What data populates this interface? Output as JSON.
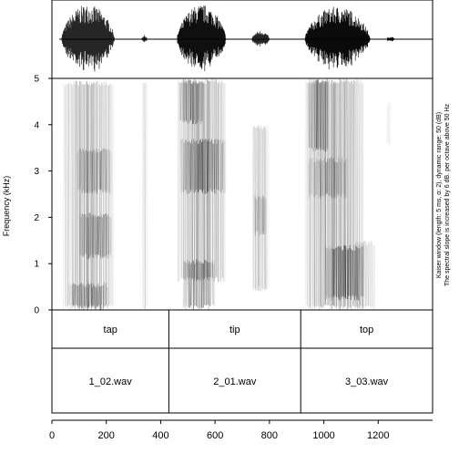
{
  "chart_data": {
    "type": "spectrogram",
    "x_axis": {
      "unit": "ms",
      "range": [
        0,
        1400
      ],
      "ticks": [
        0,
        200,
        400,
        600,
        800,
        1000,
        1200
      ],
      "tick_labels": [
        "0",
        "200",
        "400",
        "600",
        "800",
        "1000",
        "1200"
      ]
    },
    "y_axis": {
      "label": "Frequency (kHz)",
      "range": [
        0,
        5
      ],
      "ticks": [
        0,
        1,
        2,
        3,
        4,
        5
      ],
      "tick_labels": [
        "0",
        "1",
        "2",
        "3",
        "4",
        "5"
      ]
    },
    "side_notes": [
      "Kaiser window (length: 5 ms, α: 2), dynamic range: 50 (dB)",
      "The spectral slope is increased by 6 dB. per octave above 50 Hz"
    ],
    "waveform_bursts": [
      {
        "start": 35,
        "end": 230,
        "peak": 1.0
      },
      {
        "start": 330,
        "end": 350,
        "peak": 0.12
      },
      {
        "start": 460,
        "end": 640,
        "peak": 1.0
      },
      {
        "start": 735,
        "end": 800,
        "peak": 0.25
      },
      {
        "start": 930,
        "end": 1170,
        "peak": 0.95
      },
      {
        "start": 1230,
        "end": 1260,
        "peak": 0.08
      }
    ],
    "segments": [
      {
        "word": "tap",
        "file": "1_02.wav",
        "start": 0,
        "end": 430
      },
      {
        "word": "tip",
        "file": "2_01.wav",
        "start": 430,
        "end": 915
      },
      {
        "word": "top",
        "file": "3_03.wav",
        "start": 915,
        "end": 1400
      }
    ],
    "spectral_energy": [
      {
        "t0": 40,
        "t1": 230,
        "f0": 0,
        "f1": 4.95,
        "intensity": 0.55
      },
      {
        "t0": 60,
        "t1": 210,
        "f0": 0,
        "f1": 0.6,
        "intensity": 0.7
      },
      {
        "t0": 100,
        "t1": 220,
        "f0": 1.1,
        "f1": 2.1,
        "intensity": 0.8
      },
      {
        "t0": 90,
        "t1": 220,
        "f0": 2.5,
        "f1": 3.5,
        "intensity": 0.65
      },
      {
        "t0": 330,
        "t1": 350,
        "f0": 0,
        "f1": 5,
        "intensity": 0.22
      },
      {
        "t0": 460,
        "t1": 640,
        "f0": 0.6,
        "f1": 5,
        "intensity": 0.6
      },
      {
        "t0": 480,
        "t1": 600,
        "f0": 0,
        "f1": 1.1,
        "intensity": 0.85
      },
      {
        "t0": 470,
        "t1": 640,
        "f0": 2.5,
        "f1": 3.7,
        "intensity": 0.9
      },
      {
        "t0": 465,
        "t1": 560,
        "f0": 4,
        "f1": 5,
        "intensity": 0.75
      },
      {
        "t0": 735,
        "t1": 800,
        "f0": 0.4,
        "f1": 4,
        "intensity": 0.4
      },
      {
        "t0": 740,
        "t1": 790,
        "f0": 1.6,
        "f1": 2.5,
        "intensity": 0.6
      },
      {
        "t0": 930,
        "t1": 1150,
        "f0": 0,
        "f1": 5,
        "intensity": 0.6
      },
      {
        "t0": 1000,
        "t1": 1150,
        "f0": 0.2,
        "f1": 1.4,
        "intensity": 0.9
      },
      {
        "t0": 940,
        "t1": 1020,
        "f0": 3.4,
        "f1": 5,
        "intensity": 0.8
      },
      {
        "t0": 940,
        "t1": 1090,
        "f0": 2.4,
        "f1": 3.3,
        "intensity": 0.55
      },
      {
        "t0": 1110,
        "t1": 1190,
        "f0": 0,
        "f1": 1.5,
        "intensity": 0.35
      },
      {
        "t0": 1230,
        "t1": 1250,
        "f0": 3.5,
        "f1": 4.5,
        "intensity": 0.15
      }
    ]
  }
}
